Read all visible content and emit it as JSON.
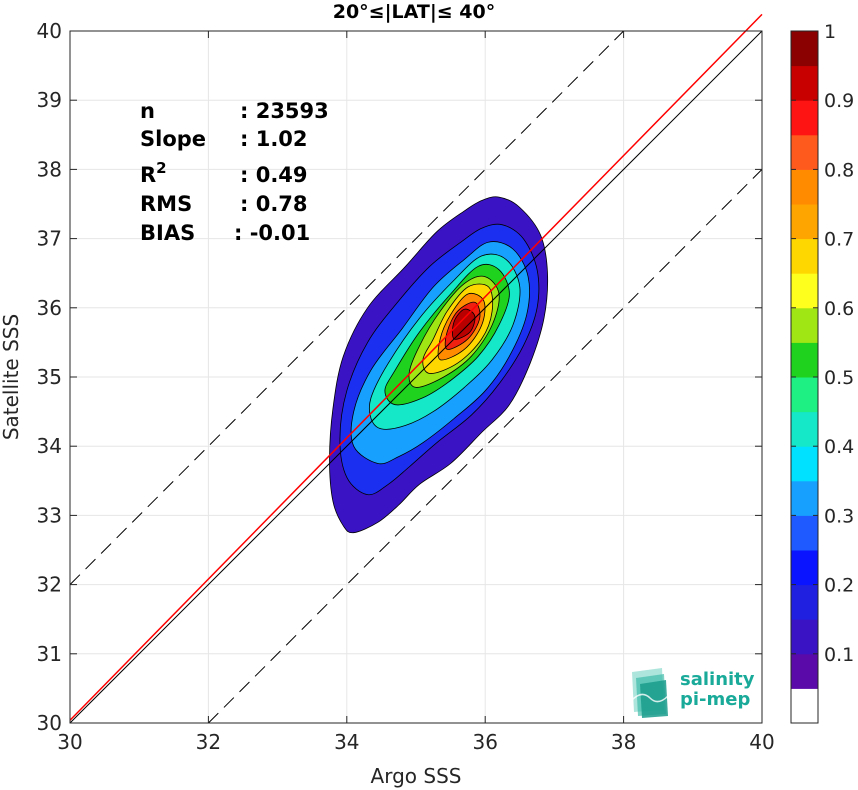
{
  "chart_data": {
    "type": "contour",
    "title": "20°≤|LAT|≤ 40°",
    "xlabel": "Argo SSS",
    "ylabel": "Satellite SSS",
    "xlim": [
      30,
      40
    ],
    "ylim": [
      30,
      40
    ],
    "xticks": [
      30,
      32,
      34,
      36,
      38,
      40
    ],
    "yticks": [
      30,
      31,
      32,
      33,
      34,
      35,
      36,
      37,
      38,
      39,
      40
    ],
    "grid": true,
    "stats": {
      "n_label": "n",
      "n_value": ": 23593",
      "slope_label": "Slope",
      "slope_value": ": 1.02",
      "r2_label": "R",
      "r2_sup": "2",
      "r2_value": ": 0.49",
      "rms_label": "RMS",
      "rms_value": ": 0.78",
      "bias_label": "BIAS",
      "bias_value": ": -0.01"
    },
    "lines": [
      {
        "role": "1:1 line",
        "color": "#000000",
        "style": "solid",
        "points": [
          [
            30,
            30
          ],
          [
            40,
            40
          ]
        ]
      },
      {
        "role": "regression fit",
        "color": "#ff0000",
        "style": "solid",
        "slope": 1.02,
        "points": [
          [
            30,
            30.04
          ],
          [
            40,
            40.24
          ]
        ]
      },
      {
        "role": "+2 offset",
        "color": "#000000",
        "style": "dashed",
        "points": [
          [
            30,
            32
          ],
          [
            38,
            40
          ]
        ]
      },
      {
        "role": "-2 offset",
        "color": "#000000",
        "style": "dashed",
        "points": [
          [
            32,
            30
          ],
          [
            40,
            38
          ]
        ]
      }
    ],
    "density_peak": {
      "x": 35.75,
      "y": 35.85
    },
    "contour_levels": [
      {
        "level": 0.05,
        "color": "#3a14c4",
        "ring": [
          [
            34.1,
            32.75
          ],
          [
            34.45,
            32.9
          ],
          [
            34.75,
            33.15
          ],
          [
            35.05,
            33.45
          ],
          [
            35.5,
            33.75
          ],
          [
            35.95,
            34.2
          ],
          [
            36.35,
            34.6
          ],
          [
            36.65,
            35.2
          ],
          [
            36.85,
            35.85
          ],
          [
            36.9,
            36.5
          ],
          [
            36.8,
            37.05
          ],
          [
            36.5,
            37.45
          ],
          [
            36.2,
            37.6
          ],
          [
            35.95,
            37.55
          ],
          [
            35.7,
            37.4
          ],
          [
            35.3,
            37.1
          ],
          [
            34.85,
            36.6
          ],
          [
            34.3,
            36.0
          ],
          [
            33.95,
            35.3
          ],
          [
            33.8,
            34.55
          ],
          [
            33.75,
            33.8
          ],
          [
            33.8,
            33.2
          ],
          [
            33.95,
            32.85
          ]
        ]
      },
      {
        "level": 0.15,
        "color": "#1b2ff0",
        "ring": [
          [
            34.3,
            33.3
          ],
          [
            34.6,
            33.45
          ],
          [
            34.9,
            33.7
          ],
          [
            35.3,
            34.05
          ],
          [
            35.8,
            34.45
          ],
          [
            36.2,
            34.9
          ],
          [
            36.55,
            35.45
          ],
          [
            36.75,
            36.0
          ],
          [
            36.75,
            36.55
          ],
          [
            36.55,
            37.0
          ],
          [
            36.25,
            37.2
          ],
          [
            35.95,
            37.15
          ],
          [
            35.65,
            36.95
          ],
          [
            35.2,
            36.6
          ],
          [
            34.75,
            36.1
          ],
          [
            34.3,
            35.5
          ],
          [
            34.0,
            34.8
          ],
          [
            33.9,
            34.1
          ],
          [
            34.0,
            33.55
          ]
        ]
      },
      {
        "level": 0.25,
        "color": "#18a0ff",
        "ring": [
          [
            34.45,
            33.75
          ],
          [
            34.75,
            33.85
          ],
          [
            35.1,
            34.05
          ],
          [
            35.55,
            34.4
          ],
          [
            36.0,
            34.8
          ],
          [
            36.35,
            35.3
          ],
          [
            36.6,
            35.9
          ],
          [
            36.62,
            36.45
          ],
          [
            36.4,
            36.85
          ],
          [
            36.05,
            36.95
          ],
          [
            35.7,
            36.7
          ],
          [
            35.25,
            36.3
          ],
          [
            34.8,
            35.7
          ],
          [
            34.35,
            35.1
          ],
          [
            34.1,
            34.5
          ],
          [
            34.1,
            34.0
          ]
        ]
      },
      {
        "level": 0.35,
        "color": "#14e8c8",
        "ring": [
          [
            34.5,
            34.25
          ],
          [
            34.85,
            34.3
          ],
          [
            35.25,
            34.5
          ],
          [
            35.7,
            34.85
          ],
          [
            36.1,
            35.25
          ],
          [
            36.4,
            35.75
          ],
          [
            36.5,
            36.3
          ],
          [
            36.3,
            36.7
          ],
          [
            35.95,
            36.75
          ],
          [
            35.55,
            36.4
          ],
          [
            35.05,
            35.85
          ],
          [
            34.6,
            35.2
          ],
          [
            34.35,
            34.7
          ],
          [
            34.35,
            34.4
          ]
        ]
      },
      {
        "level": 0.45,
        "color": "#1ed21e",
        "ring": [
          [
            34.7,
            34.6
          ],
          [
            35.1,
            34.7
          ],
          [
            35.5,
            34.95
          ],
          [
            35.9,
            35.3
          ],
          [
            36.2,
            35.75
          ],
          [
            36.35,
            36.2
          ],
          [
            36.2,
            36.55
          ],
          [
            35.9,
            36.6
          ],
          [
            35.5,
            36.2
          ],
          [
            35.05,
            35.65
          ],
          [
            34.7,
            35.1
          ],
          [
            34.55,
            34.8
          ]
        ]
      },
      {
        "level": 0.55,
        "color": "#a0e614",
        "ring": [
          [
            35.0,
            34.85
          ],
          [
            35.4,
            35.0
          ],
          [
            35.8,
            35.3
          ],
          [
            36.1,
            35.75
          ],
          [
            36.2,
            36.2
          ],
          [
            36.0,
            36.45
          ],
          [
            35.7,
            36.35
          ],
          [
            35.35,
            35.95
          ],
          [
            35.05,
            35.45
          ],
          [
            34.9,
            35.05
          ]
        ]
      },
      {
        "level": 0.65,
        "color": "#ffd700",
        "ring": [
          [
            35.2,
            35.05
          ],
          [
            35.6,
            35.2
          ],
          [
            35.95,
            35.55
          ],
          [
            36.1,
            35.95
          ],
          [
            36.05,
            36.3
          ],
          [
            35.75,
            36.3
          ],
          [
            35.45,
            35.95
          ],
          [
            35.25,
            35.55
          ],
          [
            35.1,
            35.25
          ]
        ]
      },
      {
        "level": 0.75,
        "color": "#ff8c00",
        "ring": [
          [
            35.35,
            35.25
          ],
          [
            35.7,
            35.4
          ],
          [
            35.95,
            35.75
          ],
          [
            35.98,
            36.1
          ],
          [
            35.75,
            36.2
          ],
          [
            35.5,
            35.9
          ],
          [
            35.35,
            35.55
          ]
        ]
      },
      {
        "level": 0.85,
        "color": "#f02010",
        "ring": [
          [
            35.45,
            35.4
          ],
          [
            35.75,
            35.55
          ],
          [
            35.92,
            35.85
          ],
          [
            35.85,
            36.08
          ],
          [
            35.6,
            35.95
          ],
          [
            35.45,
            35.65
          ]
        ]
      },
      {
        "level": 0.95,
        "color": "#b80000",
        "ring": [
          [
            35.55,
            35.55
          ],
          [
            35.78,
            35.65
          ],
          [
            35.85,
            35.88
          ],
          [
            35.7,
            35.98
          ],
          [
            35.55,
            35.8
          ]
        ]
      }
    ],
    "colorbar": {
      "ticks": [
        "0.1",
        "0.2",
        "0.3",
        "0.4",
        "0.5",
        "0.6",
        "0.7",
        "0.8",
        "0.9",
        "1"
      ],
      "tick_values": [
        0.1,
        0.2,
        0.3,
        0.4,
        0.5,
        0.6,
        0.7,
        0.8,
        0.9,
        1.0
      ],
      "range": [
        0,
        1
      ],
      "bins": [
        {
          "from": 0.0,
          "to": 0.05,
          "color": "#ffffff"
        },
        {
          "from": 0.05,
          "to": 0.1,
          "color": "#5a0aa8"
        },
        {
          "from": 0.1,
          "to": 0.15,
          "color": "#3a14c4"
        },
        {
          "from": 0.15,
          "to": 0.2,
          "color": "#2020e0"
        },
        {
          "from": 0.2,
          "to": 0.25,
          "color": "#0a14ff"
        },
        {
          "from": 0.25,
          "to": 0.3,
          "color": "#1e5aff"
        },
        {
          "from": 0.3,
          "to": 0.35,
          "color": "#18a0ff"
        },
        {
          "from": 0.35,
          "to": 0.4,
          "color": "#00e0ff"
        },
        {
          "from": 0.4,
          "to": 0.45,
          "color": "#14e8c8"
        },
        {
          "from": 0.45,
          "to": 0.5,
          "color": "#1ef084"
        },
        {
          "from": 0.5,
          "to": 0.55,
          "color": "#1ed21e"
        },
        {
          "from": 0.55,
          "to": 0.6,
          "color": "#a0e614"
        },
        {
          "from": 0.6,
          "to": 0.65,
          "color": "#ffff1e"
        },
        {
          "from": 0.65,
          "to": 0.7,
          "color": "#ffd700"
        },
        {
          "from": 0.7,
          "to": 0.75,
          "color": "#ffa500"
        },
        {
          "from": 0.75,
          "to": 0.8,
          "color": "#ff8c00"
        },
        {
          "from": 0.8,
          "to": 0.85,
          "color": "#ff5a1e"
        },
        {
          "from": 0.85,
          "to": 0.9,
          "color": "#ff1414"
        },
        {
          "from": 0.9,
          "to": 0.95,
          "color": "#c80000"
        },
        {
          "from": 0.95,
          "to": 1.0,
          "color": "#8b0000"
        }
      ]
    },
    "logo": {
      "line1": "salinity",
      "line2": "pi-mep",
      "color": "#1aaa9a"
    }
  }
}
